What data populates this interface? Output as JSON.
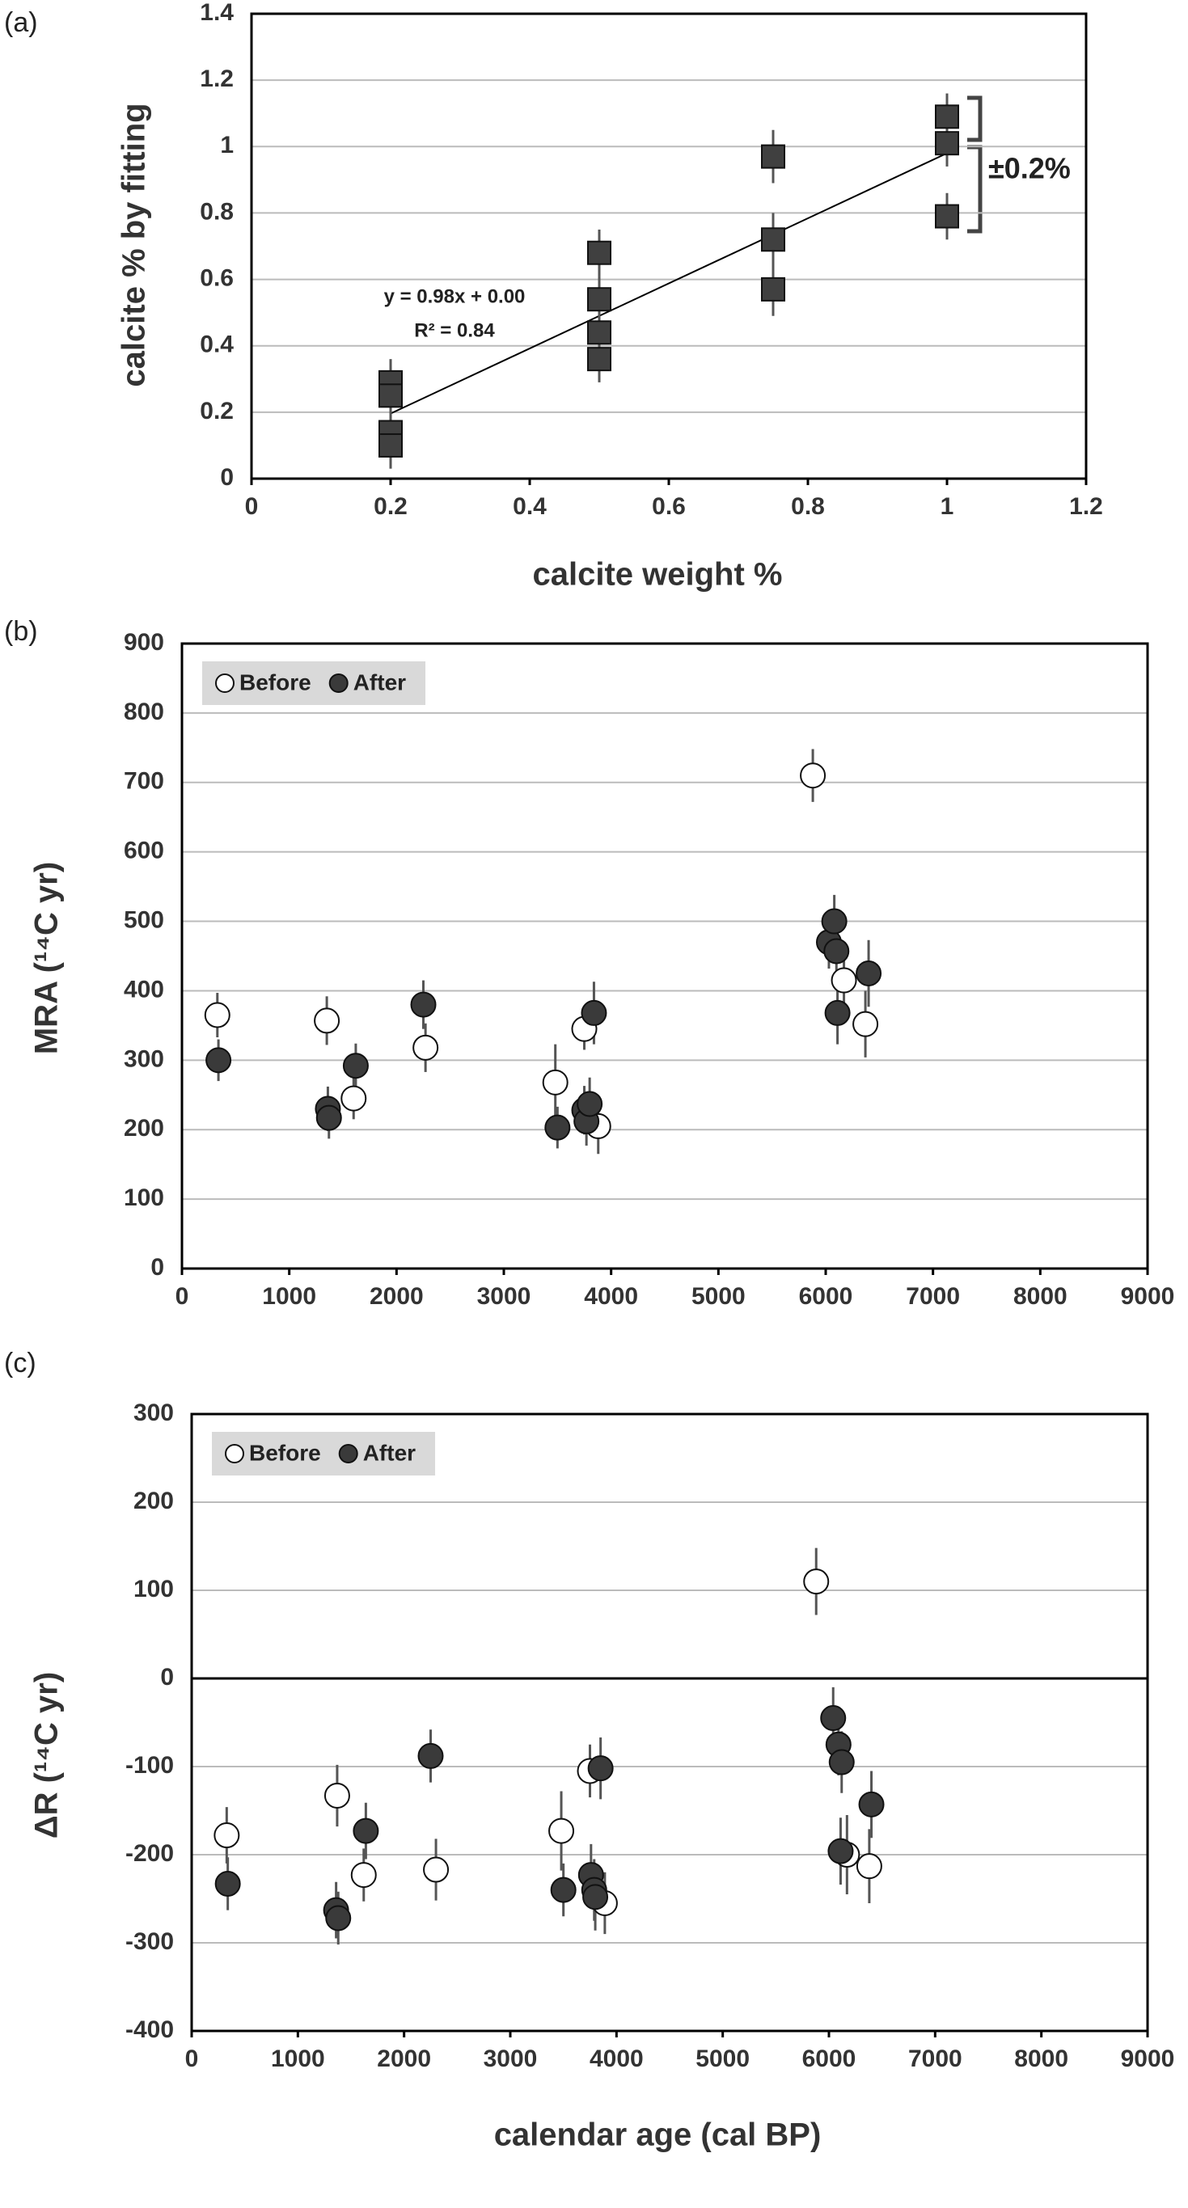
{
  "chart_data": [
    {
      "type": "scatter",
      "panel_label": "(a)",
      "xlabel": "calcite weight %",
      "ylabel": "calcite % by fitting",
      "xlim": [
        0,
        1.2
      ],
      "xticks": [
        0,
        0.2,
        0.4,
        0.6,
        0.8,
        1,
        1.2
      ],
      "ylim": [
        0,
        1.4
      ],
      "yticks": [
        0,
        0.2,
        0.4,
        0.6,
        0.8,
        1,
        1.2,
        1.4
      ],
      "grid": true,
      "marker": "square",
      "series": [
        {
          "color": "#404040",
          "x": [
            0.2,
            0.2,
            0.2,
            0.2,
            0.5,
            0.5,
            0.5,
            0.5,
            0.75,
            0.75,
            0.75,
            1,
            1,
            1
          ],
          "values": [
            0.29,
            0.25,
            0.14,
            0.1,
            0.68,
            0.54,
            0.44,
            0.36,
            0.97,
            0.72,
            0.57,
            1.09,
            1.01,
            0.79
          ],
          "errors": [
            0.07,
            0.07,
            0.07,
            0.07,
            0.07,
            0.07,
            0.07,
            0.07,
            0.08,
            0.08,
            0.08,
            0.07,
            0.07,
            0.07
          ]
        }
      ],
      "trendline": {
        "equation": "y = 0.98x + 0.00",
        "r2": "R² = 0.84",
        "slope": 0.98,
        "intercept": 0.0,
        "x": [
          0.2,
          1
        ]
      },
      "annotation": "±0.2%"
    },
    {
      "type": "scatter",
      "panel_label": "(b)",
      "ylabel": "MRA (¹⁴C yr)",
      "xlim": [
        0,
        9000
      ],
      "xticks": [
        0,
        1000,
        2000,
        3000,
        4000,
        5000,
        6000,
        7000,
        8000,
        9000
      ],
      "ylim": [
        0,
        900
      ],
      "yticks": [
        0,
        100,
        200,
        300,
        400,
        500,
        600,
        700,
        800,
        900
      ],
      "grid": true,
      "marker": "circle",
      "legend": "upper left",
      "series": [
        {
          "name": "Before",
          "color": "#ffffff",
          "x": [
            330,
            1350,
            1600,
            2270,
            3480,
            3750,
            3880,
            5880,
            6170,
            6370
          ],
          "values": [
            365,
            357,
            245,
            318,
            268,
            345,
            205,
            710,
            415,
            352
          ],
          "errors": [
            32,
            35,
            30,
            35,
            55,
            30,
            40,
            38,
            45,
            48
          ]
        },
        {
          "name": "After",
          "color": "#3a3a3a",
          "x": [
            340,
            1360,
            1370,
            1620,
            2250,
            3500,
            3750,
            3770,
            3800,
            3840,
            6030,
            6080,
            6100,
            6110,
            6400
          ],
          "values": [
            300,
            230,
            217,
            292,
            380,
            203,
            228,
            212,
            237,
            368,
            470,
            500,
            457,
            368,
            425
          ],
          "errors": [
            30,
            32,
            30,
            32,
            35,
            30,
            35,
            35,
            38,
            45,
            38,
            38,
            38,
            45,
            48
          ]
        }
      ]
    },
    {
      "type": "scatter",
      "panel_label": "(c)",
      "xlabel": "calendar age (cal BP)",
      "ylabel": "ΔR (¹⁴C yr)",
      "xlim": [
        0,
        9000
      ],
      "xticks": [
        0,
        1000,
        2000,
        3000,
        4000,
        5000,
        6000,
        7000,
        8000,
        9000
      ],
      "ylim": [
        -400,
        300
      ],
      "yticks": [
        -400,
        -300,
        -200,
        -100,
        0,
        100,
        200,
        300
      ],
      "grid": true,
      "marker": "circle",
      "legend": "upper left",
      "series": [
        {
          "name": "Before",
          "color": "#ffffff",
          "x": [
            330,
            1370,
            1620,
            2300,
            3480,
            3750,
            3890,
            5880,
            6170,
            6380
          ],
          "values": [
            -178,
            -133,
            -223,
            -217,
            -173,
            -105,
            -255,
            110,
            -200,
            -213
          ],
          "errors": [
            32,
            35,
            30,
            35,
            45,
            30,
            35,
            38,
            45,
            42
          ]
        },
        {
          "name": "After",
          "color": "#3a3a3a",
          "x": [
            340,
            1360,
            1380,
            1640,
            2250,
            3500,
            3760,
            3790,
            3800,
            3850,
            6040,
            6090,
            6120,
            6110,
            6400
          ],
          "values": [
            -233,
            -263,
            -272,
            -173,
            -88,
            -240,
            -223,
            -240,
            -248,
            -102,
            -45,
            -75,
            -95,
            -196,
            -143
          ],
          "errors": [
            30,
            32,
            30,
            32,
            30,
            30,
            35,
            35,
            38,
            35,
            35,
            35,
            35,
            38,
            38
          ]
        }
      ]
    }
  ]
}
